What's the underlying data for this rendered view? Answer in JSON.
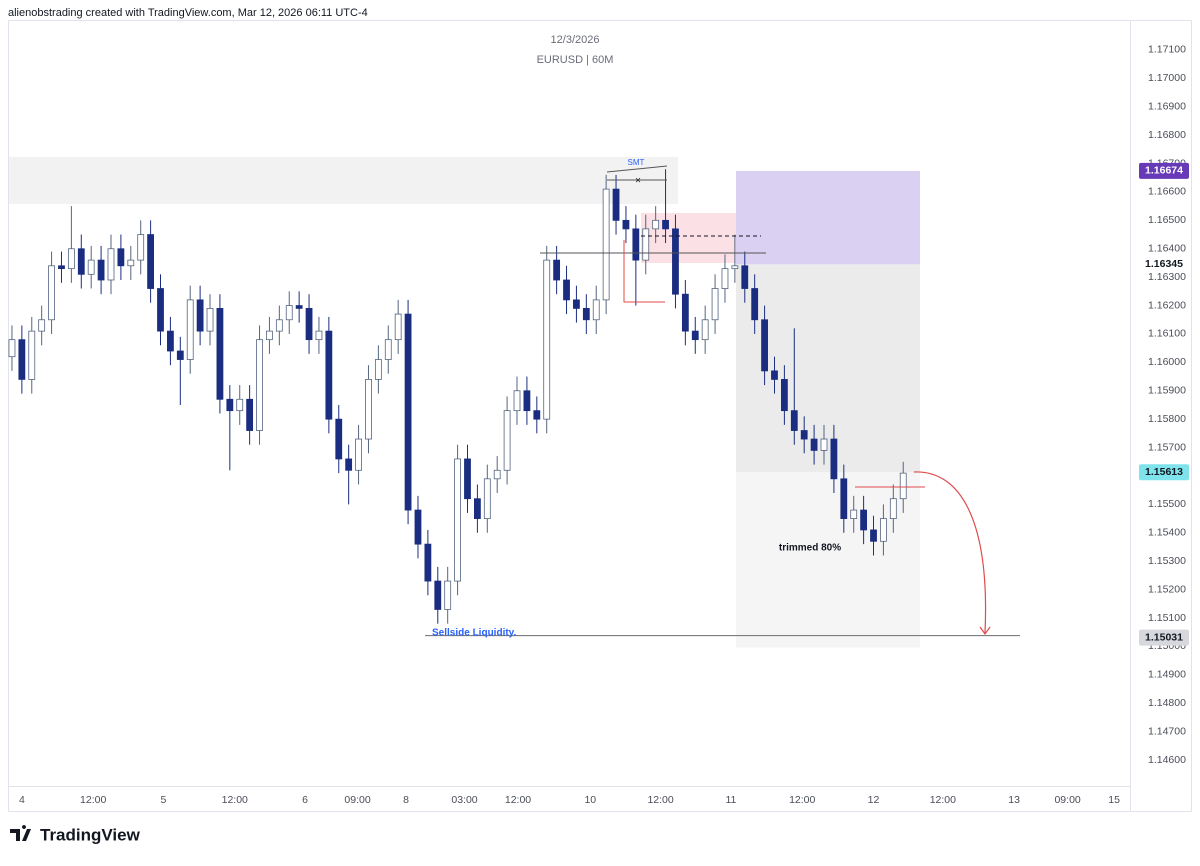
{
  "header": "alienobstrading created with TradingView.com, Mar 12, 2026 06:11 UTC-4",
  "chart_data": {
    "type": "candlestick",
    "title": "12/3/2026",
    "subtitle": "EURUSD | 60M",
    "open": [
      1.1602,
      1.1608,
      1.1594,
      1.1611,
      1.1615,
      1.1634,
      1.1633,
      1.164,
      1.1631,
      1.1636,
      1.1629,
      1.164,
      1.1634,
      1.1636,
      1.1645,
      1.1626,
      1.1611,
      1.1604,
      1.1601,
      1.1622,
      1.1611,
      1.1619,
      1.1587,
      1.1583,
      1.1587,
      1.1576,
      1.1608,
      1.1611,
      1.1615,
      1.162,
      1.1619,
      1.1608,
      1.1611,
      1.158,
      1.1566,
      1.1562,
      1.1573,
      1.1594,
      1.1601,
      1.1608,
      1.1617,
      1.1548,
      1.1536,
      1.1523,
      1.1513,
      1.1523,
      1.1566,
      1.1552,
      1.1545,
      1.1559,
      1.1562,
      1.1583,
      1.159,
      1.1583,
      1.158,
      1.1636,
      1.1629,
      1.1622,
      1.1619,
      1.1615,
      1.1622,
      1.1661,
      1.165,
      1.1647,
      1.1636,
      1.1647,
      1.165,
      1.1647,
      1.1624,
      1.1611,
      1.1608,
      1.1615,
      1.1626,
      1.1633,
      1.1634,
      1.1626,
      1.1615,
      1.1597,
      1.1594,
      1.1583,
      1.1576,
      1.1573,
      1.1569,
      1.1573,
      1.1559,
      1.1545,
      1.1548,
      1.1541,
      1.1537,
      1.1545,
      1.1552
    ],
    "high": [
      1.1613,
      1.1613,
      1.1616,
      1.162,
      1.1639,
      1.1639,
      1.1655,
      1.1645,
      1.1641,
      1.1641,
      1.1645,
      1.1645,
      1.1641,
      1.165,
      1.165,
      1.1631,
      1.1616,
      1.1609,
      1.1627,
      1.1627,
      1.1624,
      1.1624,
      1.1592,
      1.1592,
      1.1592,
      1.1613,
      1.1616,
      1.162,
      1.1625,
      1.1625,
      1.1624,
      1.1616,
      1.1616,
      1.1585,
      1.1571,
      1.1578,
      1.1599,
      1.1606,
      1.1613,
      1.1622,
      1.1622,
      1.1553,
      1.1541,
      1.1528,
      1.1528,
      1.1571,
      1.1571,
      1.1557,
      1.1564,
      1.1567,
      1.1588,
      1.1595,
      1.1595,
      1.1588,
      1.1641,
      1.1641,
      1.1634,
      1.1627,
      1.1624,
      1.1627,
      1.1666,
      1.1666,
      1.1655,
      1.1652,
      1.1652,
      1.1655,
      1.1668,
      1.1652,
      1.1629,
      1.1616,
      1.162,
      1.1631,
      1.1638,
      1.1645,
      1.1639,
      1.1631,
      1.162,
      1.1602,
      1.1599,
      1.1612,
      1.1581,
      1.1578,
      1.1578,
      1.1578,
      1.1564,
      1.1553,
      1.1553,
      1.1546,
      1.155,
      1.1557,
      1.1565
    ],
    "low": [
      1.1597,
      1.1589,
      1.1589,
      1.1606,
      1.161,
      1.1628,
      1.1628,
      1.1626,
      1.1626,
      1.1624,
      1.1624,
      1.1629,
      1.1629,
      1.1631,
      1.1621,
      1.1606,
      1.1599,
      1.1585,
      1.1596,
      1.1606,
      1.1606,
      1.1582,
      1.1562,
      1.1578,
      1.1571,
      1.1571,
      1.1603,
      1.1606,
      1.161,
      1.1614,
      1.1603,
      1.1603,
      1.1575,
      1.1561,
      1.155,
      1.1557,
      1.1568,
      1.1589,
      1.1596,
      1.1603,
      1.1543,
      1.1531,
      1.1518,
      1.1508,
      1.1508,
      1.1518,
      1.1547,
      1.154,
      1.154,
      1.1554,
      1.1557,
      1.1578,
      1.1578,
      1.1575,
      1.1575,
      1.1624,
      1.1617,
      1.1614,
      1.161,
      1.161,
      1.1617,
      1.1645,
      1.1642,
      1.162,
      1.1631,
      1.1642,
      1.1642,
      1.1619,
      1.1606,
      1.1603,
      1.1603,
      1.161,
      1.1621,
      1.1628,
      1.1621,
      1.161,
      1.1592,
      1.1589,
      1.1578,
      1.1571,
      1.1568,
      1.1564,
      1.1564,
      1.1554,
      1.154,
      1.154,
      1.1536,
      1.1532,
      1.1532,
      1.154,
      1.1547
    ],
    "close": [
      1.1608,
      1.1594,
      1.1611,
      1.1615,
      1.1634,
      1.1633,
      1.164,
      1.1631,
      1.1636,
      1.1629,
      1.164,
      1.1634,
      1.1636,
      1.1645,
      1.1626,
      1.1611,
      1.1604,
      1.1601,
      1.1622,
      1.1611,
      1.1619,
      1.1587,
      1.1583,
      1.1587,
      1.1576,
      1.1608,
      1.1611,
      1.1615,
      1.162,
      1.1619,
      1.1608,
      1.1611,
      1.158,
      1.1566,
      1.1562,
      1.1573,
      1.1594,
      1.1601,
      1.1608,
      1.1617,
      1.1548,
      1.1536,
      1.1523,
      1.1513,
      1.1523,
      1.1566,
      1.1552,
      1.1545,
      1.1559,
      1.1562,
      1.1583,
      1.159,
      1.1583,
      1.158,
      1.1636,
      1.1629,
      1.1622,
      1.1619,
      1.1615,
      1.1622,
      1.1661,
      1.165,
      1.1647,
      1.1636,
      1.1647,
      1.165,
      1.1647,
      1.1624,
      1.1611,
      1.1608,
      1.1615,
      1.1626,
      1.1633,
      1.1634,
      1.1626,
      1.1615,
      1.1597,
      1.1594,
      1.1583,
      1.1576,
      1.1573,
      1.1569,
      1.1573,
      1.1559,
      1.1545,
      1.1548,
      1.1541,
      1.1537,
      1.1545,
      1.1552,
      1.1561
    ],
    "up_color": "#ffffff",
    "down_color": "#1b2d80",
    "outline_color": "#55657f",
    "xlim": [
      -0.4,
      112.9
    ],
    "xticks": [
      {
        "value": 1.0,
        "label": "4"
      },
      {
        "value": 8.2,
        "label": "12:00"
      },
      {
        "value": 15.3,
        "label": "5"
      },
      {
        "value": 22.5,
        "label": "12:00"
      },
      {
        "value": 29.6,
        "label": "6"
      },
      {
        "value": 34.9,
        "label": "09:00"
      },
      {
        "value": 39.8,
        "label": "8"
      },
      {
        "value": 45.7,
        "label": "03:00"
      },
      {
        "value": 51.1,
        "label": "12:00"
      },
      {
        "value": 58.4,
        "label": "10"
      },
      {
        "value": 65.5,
        "label": "12:00"
      },
      {
        "value": 72.6,
        "label": "11"
      },
      {
        "value": 79.8,
        "label": "12:00"
      },
      {
        "value": 87.0,
        "label": "12"
      },
      {
        "value": 94.0,
        "label": "12:00"
      },
      {
        "value": 101.2,
        "label": "13"
      },
      {
        "value": 106.6,
        "label": "09:00"
      },
      {
        "value": 111.3,
        "label": "15"
      }
    ],
    "ylim": [
      1.14512,
      1.17223
    ],
    "yticks": [
      {
        "value": 1.171,
        "label": "1.17100"
      },
      {
        "value": 1.17,
        "label": "1.17000"
      },
      {
        "value": 1.169,
        "label": "1.16900"
      },
      {
        "value": 1.168,
        "label": "1.16800"
      },
      {
        "value": 1.167,
        "label": "1.16700"
      },
      {
        "value": 1.166,
        "label": "1.16600"
      },
      {
        "value": 1.165,
        "label": "1.16500"
      },
      {
        "value": 1.164,
        "label": "1.16400"
      },
      {
        "value": 1.163,
        "label": "1.16300"
      },
      {
        "value": 1.162,
        "label": "1.16200"
      },
      {
        "value": 1.161,
        "label": "1.16100"
      },
      {
        "value": 1.16,
        "label": "1.16000"
      },
      {
        "value": 1.159,
        "label": "1.15900"
      },
      {
        "value": 1.158,
        "label": "1.15800"
      },
      {
        "value": 1.157,
        "label": "1.15700"
      },
      {
        "value": 1.156,
        "label": "1.15600"
      },
      {
        "value": 1.155,
        "label": "1.15500"
      },
      {
        "value": 1.154,
        "label": "1.15400"
      },
      {
        "value": 1.153,
        "label": "1.15300"
      },
      {
        "value": 1.152,
        "label": "1.15200"
      },
      {
        "value": 1.151,
        "label": "1.15100"
      },
      {
        "value": 1.15,
        "label": "1.15000"
      },
      {
        "value": 1.149,
        "label": "1.14900"
      },
      {
        "value": 1.148,
        "label": "1.14800"
      },
      {
        "value": 1.147,
        "label": "1.14700"
      },
      {
        "value": 1.146,
        "label": "1.14600"
      }
    ],
    "grid": false,
    "price_markers": [
      {
        "value": 1.16674,
        "color": "#673ab7",
        "text_color": "#ffffff"
      },
      {
        "value": 1.16345,
        "color": "#ffffff",
        "text_color": "#131722"
      },
      {
        "value": 1.15613,
        "color": "#7fe3ec",
        "text_color": "#131722"
      },
      {
        "value": 1.15031,
        "color": "#d6d8dd",
        "text_color": "#131722"
      }
    ],
    "annotations": {
      "smt": "SMT",
      "cross": "×",
      "trimmed": "trimmed 80%",
      "sellside": "Sellside Liquidity."
    }
  },
  "footer": {
    "logo": "TradingView"
  }
}
